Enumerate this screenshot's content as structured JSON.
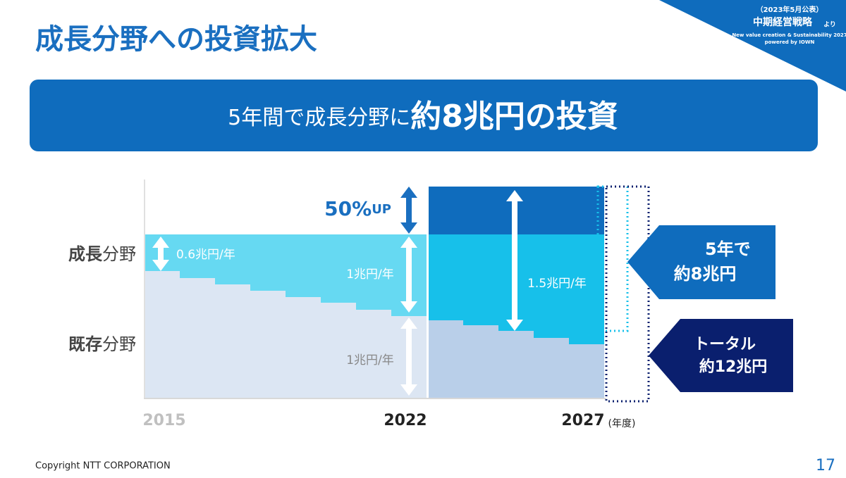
{
  "header": {
    "title": "成長分野への投資拡大"
  },
  "badge": {
    "date": "（2023年5月公表）",
    "name": "中期経営戦略",
    "suffix": "より",
    "subtitle": "New value creation & Sustainability 2027",
    "powered": "powered by IOWN"
  },
  "banner": {
    "lead": "5年間で成長分野に",
    "emphasis": "約8兆円の投資"
  },
  "diagram": {
    "rows": [
      {
        "bold": "成長",
        "rest": "分野"
      },
      {
        "bold": "既存",
        "rest": "分野"
      }
    ],
    "increase": {
      "number": "50%",
      "suffix": "UP"
    },
    "rates": {
      "growth_before": "0.6兆円/年",
      "growth_2022": "1兆円/年",
      "existing_2022": "1兆円/年",
      "growth_after": "1.5兆円/年"
    },
    "years": [
      "2015",
      "2022",
      "2027"
    ],
    "year_unit": "(年度)",
    "callouts": [
      {
        "lines": [
          "5年で",
          "約8兆円"
        ]
      },
      {
        "lines": [
          "トータル",
          "約12兆円"
        ]
      }
    ]
  },
  "footer": {
    "copyright": "Copyright NTT CORPORATION",
    "page": "17"
  }
}
